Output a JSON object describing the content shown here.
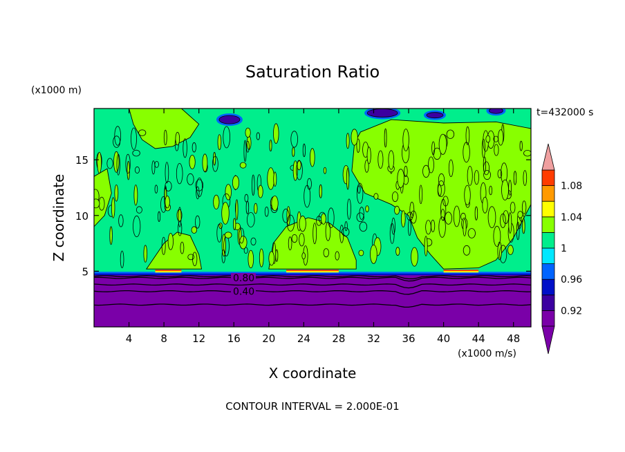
{
  "chart_data": {
    "type": "contour",
    "title": "Saturation Ratio",
    "xlabel": "X coordinate",
    "ylabel": "Z coordinate",
    "x_units": "(x1000 m/s)",
    "y_units": "(x1000 m)",
    "time_label": "t=432000 s",
    "footer": "CONTOUR INTERVAL = 2.000E-01",
    "xlim": [
      0,
      50
    ],
    "ylim": [
      0,
      19.6
    ],
    "x_ticks": [
      4,
      8,
      12,
      16,
      20,
      24,
      28,
      32,
      36,
      40,
      44,
      48
    ],
    "y_ticks": [
      5,
      10,
      15
    ],
    "colorbar": {
      "levels": [
        0.9,
        0.92,
        0.94,
        0.96,
        0.98,
        1.0,
        1.02,
        1.04,
        1.06,
        1.08,
        1.1
      ],
      "tick_labels": [
        "0.92",
        "0.96",
        "1",
        "1.04",
        "1.08"
      ],
      "colors": [
        "#7a00a8",
        "#3c00a0",
        "#0010c8",
        "#0064ff",
        "#00e8ff",
        "#00ee8c",
        "#88ff00",
        "#ffff00",
        "#ff9a00",
        "#ff3c00",
        "#ee1010",
        "#f0a0a0"
      ],
      "extend": "both"
    },
    "contour_lines": [
      {
        "label": "0.80",
        "z": 4.4
      },
      {
        "label": "0.40",
        "z": 3.2
      }
    ],
    "regions": {
      "subsaturated_layer_top": 4.7,
      "supersaturated_bands": [
        [
          7,
          10
        ],
        [
          22,
          28
        ],
        [
          40,
          44
        ]
      ]
    }
  }
}
